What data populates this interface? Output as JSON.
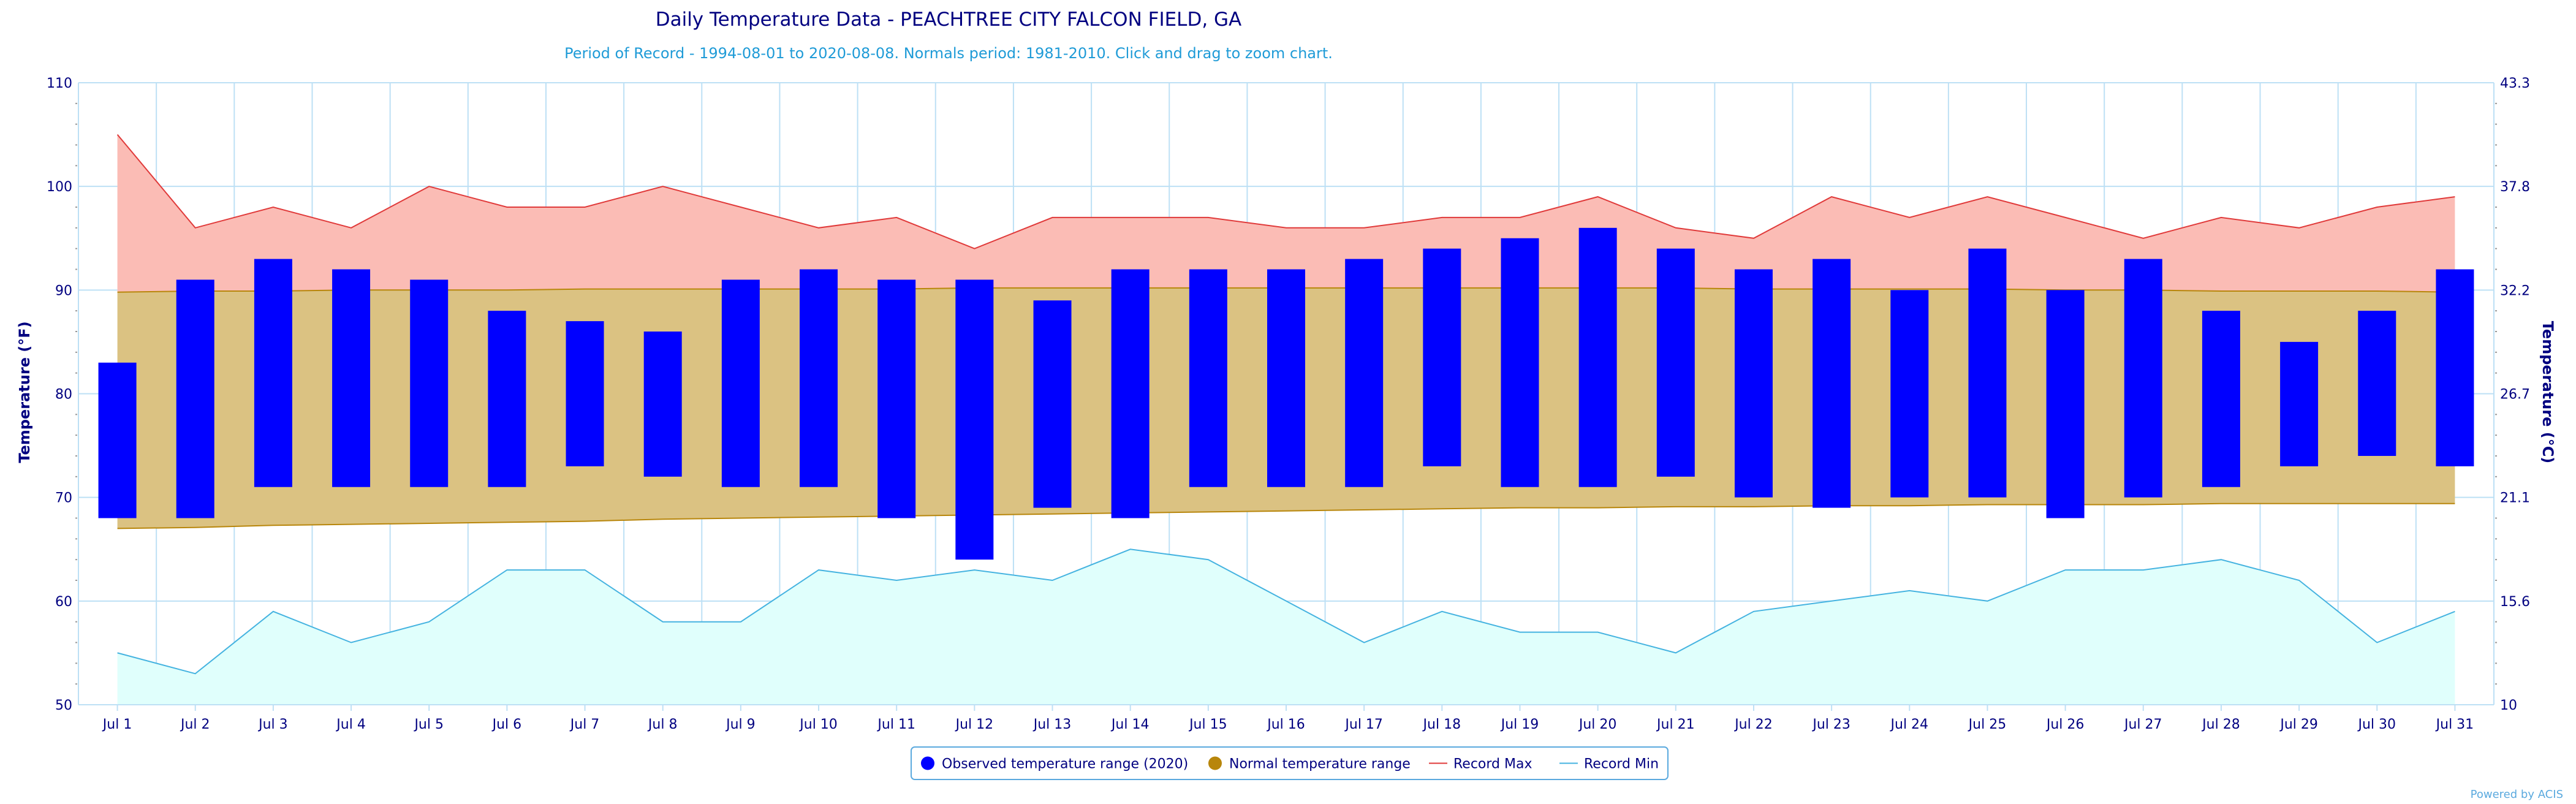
{
  "chart_data": {
    "type": "bar",
    "title": "Daily Temperature Data - PEACHTREE CITY FALCON FIELD, GA",
    "subtitle": "Period of Record - 1994-08-01 to 2020-08-08. Normals period: 1981-2010. Click and drag to zoom chart.",
    "ylabel": "Temperature (°F)",
    "y2label": "Temperature (°C)",
    "ylim": [
      50,
      110
    ],
    "yticks": [
      50,
      60,
      70,
      80,
      90,
      100,
      110
    ],
    "y2ticks": [
      "10",
      "15.6",
      "21.1",
      "26.7",
      "32.2",
      "37.8",
      "43.3"
    ],
    "categories": [
      "Jul 1",
      "Jul 2",
      "Jul 3",
      "Jul 4",
      "Jul 5",
      "Jul 6",
      "Jul 7",
      "Jul 8",
      "Jul 9",
      "Jul 10",
      "Jul 11",
      "Jul 12",
      "Jul 13",
      "Jul 14",
      "Jul 15",
      "Jul 16",
      "Jul 17",
      "Jul 18",
      "Jul 19",
      "Jul 20",
      "Jul 21",
      "Jul 22",
      "Jul 23",
      "Jul 24",
      "Jul 25",
      "Jul 26",
      "Jul 27",
      "Jul 28",
      "Jul 29",
      "Jul 30",
      "Jul 31"
    ],
    "series": [
      {
        "name": "Observed temperature range (2020)",
        "low": [
          68,
          68,
          71,
          71,
          71,
          71,
          73,
          72,
          71,
          71,
          68,
          64,
          69,
          68,
          71,
          71,
          71,
          73,
          71,
          71,
          72,
          70,
          69,
          70,
          70,
          68,
          70,
          71,
          73,
          74,
          73
        ],
        "high": [
          83,
          91,
          93,
          92,
          91,
          88,
          87,
          86,
          91,
          92,
          91,
          91,
          89,
          92,
          92,
          92,
          93,
          94,
          95,
          96,
          94,
          92,
          93,
          90,
          94,
          90,
          93,
          88,
          85,
          88,
          92
        ]
      },
      {
        "name": "Normal temperature range",
        "low": [
          67,
          67.1,
          67.3,
          67.4,
          67.5,
          67.6,
          67.7,
          67.9,
          68,
          68.1,
          68.2,
          68.3,
          68.4,
          68.5,
          68.6,
          68.7,
          68.8,
          68.9,
          69,
          69,
          69.1,
          69.1,
          69.2,
          69.2,
          69.3,
          69.3,
          69.3,
          69.4,
          69.4,
          69.4,
          69.4
        ],
        "high": [
          89.8,
          89.9,
          89.9,
          90,
          90,
          90,
          90.1,
          90.1,
          90.1,
          90.1,
          90.1,
          90.2,
          90.2,
          90.2,
          90.2,
          90.2,
          90.2,
          90.2,
          90.2,
          90.2,
          90.2,
          90.1,
          90.1,
          90.1,
          90.1,
          90,
          90,
          89.9,
          89.9,
          89.9,
          89.8
        ]
      },
      {
        "name": "Record Max",
        "values": [
          105,
          96,
          98,
          96,
          100,
          98,
          98,
          100,
          98,
          96,
          97,
          94,
          97,
          97,
          97,
          96,
          96,
          97,
          97,
          99,
          96,
          95,
          99,
          97,
          99,
          97,
          95,
          97,
          96,
          98,
          99
        ]
      },
      {
        "name": "Record Min",
        "values": [
          55,
          53,
          59,
          56,
          58,
          63,
          63,
          58,
          58,
          63,
          62,
          63,
          62,
          65,
          64,
          60,
          56,
          59,
          57,
          57,
          55,
          59,
          60,
          61,
          60,
          63,
          63,
          64,
          62,
          56,
          59
        ]
      }
    ],
    "grid": true,
    "legend_position": "bottom-center",
    "credit": "Powered by ACIS",
    "colors": {
      "title": "#000080",
      "subtitle": "#1f9bd7",
      "observed": "#0000ff",
      "normal": "#b8860b",
      "normal_fill": "#dbc282",
      "record_max": "#e03a3a",
      "record_max_fill": "#fbbcb5",
      "record_min": "#45b3e0",
      "record_min_fill": "#e0fffc",
      "grid": "#bde0f5",
      "axis_text": "#000080"
    }
  }
}
